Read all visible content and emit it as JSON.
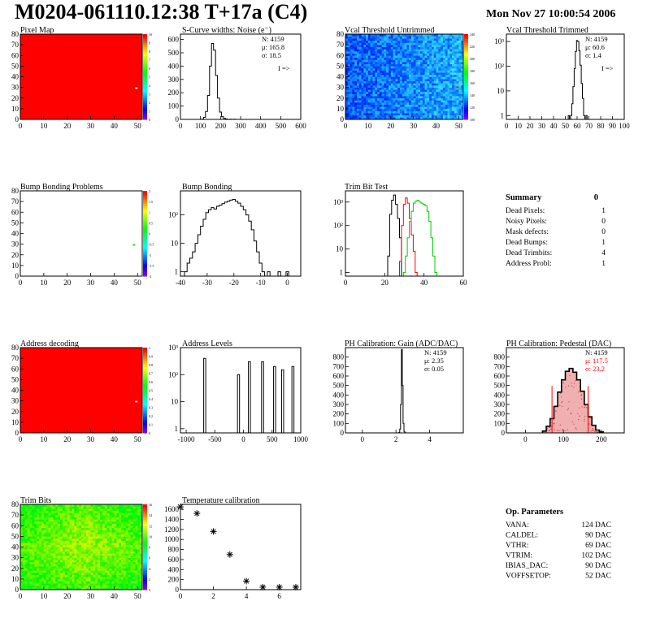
{
  "header": {
    "title": "M0204-061110.12:38 T+17a (C4)",
    "date": "Mon Nov 27 10:00:54 2006"
  },
  "summary": {
    "title": "Summary",
    "value": "0",
    "rows": [
      {
        "label": "Dead Pixels:",
        "value": "1"
      },
      {
        "label": "Noisy Pixels:",
        "value": "0"
      },
      {
        "label": "Mask defects:",
        "value": "0"
      },
      {
        "label": "Dead Bumps:",
        "value": "1"
      },
      {
        "label": "Dead Trimbits:",
        "value": "4"
      },
      {
        "label": "Address Probl:",
        "value": "1"
      }
    ]
  },
  "op_parameters": {
    "title": "Op. Parameters",
    "rows": [
      {
        "label": "VANA:",
        "value": "124 DAC"
      },
      {
        "label": "CALDEL:",
        "value": "90 DAC"
      },
      {
        "label": "VTHR:",
        "value": "69 DAC"
      },
      {
        "label": "VTRIM:",
        "value": "102 DAC"
      },
      {
        "label": "IBIAS_DAC:",
        "value": "90 DAC"
      },
      {
        "label": "VOFFSETOP:",
        "value": "52 DAC"
      }
    ]
  },
  "colors": {
    "red": "#ff0000",
    "green": "#00cc00",
    "hist": "#000000",
    "pedestal_fill": "#cc3333"
  },
  "chart_data": [
    {
      "id": "pixel_map",
      "type": "heatmap",
      "title": "Pixel Map",
      "xlim": [
        0,
        52
      ],
      "ylim": [
        0,
        80
      ],
      "xticks": [
        "0",
        "10",
        "20",
        "30",
        "40",
        "50"
      ],
      "yticks": [
        "0",
        "10",
        "20",
        "30",
        "40",
        "50",
        "60",
        "70",
        "80"
      ],
      "zticks": [
        "0",
        "1",
        "2",
        "3",
        "4",
        "5",
        "6",
        "7",
        "8",
        "9",
        "10"
      ],
      "fill": "uniform-red",
      "defects": [
        [
          49,
          29
        ]
      ]
    },
    {
      "id": "scurve_noise",
      "type": "histogram",
      "title": "S-Curve widths: Noise (e⁻)",
      "xlim": [
        0,
        600
      ],
      "ylim": [
        0,
        640
      ],
      "xticks": [
        "0",
        "100",
        "200",
        "300",
        "400",
        "500",
        "600"
      ],
      "yticks": [
        "0",
        "100",
        "200",
        "300",
        "400",
        "500",
        "600"
      ],
      "stats": [
        "N: 4159",
        "μ: 165.8",
        "σ: 18.5"
      ],
      "note": "I =>",
      "x": [
        110,
        120,
        130,
        140,
        150,
        160,
        170,
        180,
        190,
        200,
        210,
        220,
        230,
        240,
        250,
        260,
        270,
        280
      ],
      "y": [
        2,
        15,
        60,
        180,
        400,
        570,
        520,
        330,
        160,
        55,
        20,
        8,
        3,
        0,
        2,
        0,
        1,
        0
      ]
    },
    {
      "id": "vcal_untrimmed",
      "type": "heatmap",
      "title": "Vcal Threshold Untrimmed",
      "xlim": [
        0,
        52
      ],
      "ylim": [
        0,
        80
      ],
      "xticks": [
        "0",
        "10",
        "20",
        "30",
        "40",
        "50"
      ],
      "yticks": [
        "0",
        "10",
        "20",
        "30",
        "40",
        "50",
        "60",
        "70",
        "80"
      ],
      "zticks": [
        "100",
        "120",
        "140",
        "160",
        "180",
        "200",
        "220",
        "240"
      ],
      "fill": "noisy-blue-cyan"
    },
    {
      "id": "vcal_trimmed",
      "type": "histogram",
      "scale": "log",
      "title": "Vcal Threshold Trimmed",
      "xlim": [
        0,
        100
      ],
      "ylim": [
        0.7,
        2000
      ],
      "xticks": [
        "0",
        "10",
        "20",
        "30",
        "40",
        "50",
        "60",
        "70",
        "80",
        "90",
        "100"
      ],
      "yticks": [
        "1",
        "10",
        "10²",
        "10³"
      ],
      "stats": [
        "N: 4159",
        "μ: 60.6",
        "σ: 1.4"
      ],
      "note": "I =>",
      "x": [
        53,
        54,
        55,
        56,
        57,
        58,
        59,
        60,
        61,
        62,
        63,
        64,
        65,
        66,
        67,
        68
      ],
      "y": [
        1,
        0,
        1,
        3,
        15,
        80,
        400,
        1100,
        1000,
        420,
        110,
        20,
        5,
        1,
        0,
        1
      ]
    },
    {
      "id": "bump_problems",
      "type": "heatmap",
      "title": "Bump Bonding Problems",
      "xlim": [
        0,
        52
      ],
      "ylim": [
        0,
        80
      ],
      "xticks": [
        "0",
        "10",
        "20",
        "30",
        "40",
        "50"
      ],
      "yticks": [
        "0",
        "10",
        "20",
        "30",
        "40",
        "50",
        "60",
        "70",
        "80"
      ],
      "zticks": [
        "-2",
        "-1.5",
        "-1",
        "-0.5",
        "0",
        "0.5",
        "1",
        "1.5",
        "2"
      ],
      "fill": "empty",
      "defects": [
        [
          48,
          29
        ]
      ]
    },
    {
      "id": "bump_bonding",
      "type": "histogram",
      "scale": "log",
      "title": "Bump Bonding",
      "xlim": [
        -40,
        5
      ],
      "ylim": [
        0.7,
        700
      ],
      "xticks": [
        "-40",
        "-30",
        "-20",
        "-10",
        "0"
      ],
      "yticks": [
        "1",
        "10",
        "10²"
      ],
      "x": [
        -38,
        -37,
        -36,
        -35,
        -34,
        -33,
        -32,
        -31,
        -30,
        -29,
        -28,
        -27,
        -26,
        -25,
        -24,
        -23,
        -22,
        -21,
        -20,
        -19,
        -18,
        -17,
        -16,
        -15,
        -14,
        -13,
        -12,
        -11,
        -10,
        -9,
        -8,
        -7,
        -6,
        -5,
        -4,
        -3,
        -2,
        -1,
        0,
        1
      ],
      "y": [
        1,
        2,
        3,
        5,
        10,
        20,
        40,
        70,
        120,
        150,
        180,
        160,
        200,
        220,
        250,
        280,
        300,
        330,
        350,
        300,
        260,
        200,
        150,
        100,
        60,
        30,
        12,
        5,
        2,
        1,
        0,
        1,
        0,
        0,
        0,
        1,
        0,
        0,
        1,
        0
      ]
    },
    {
      "id": "trim_bit_test",
      "type": "histogram",
      "scale": "log",
      "title": "Trim Bit Test",
      "xlim": [
        0,
        60
      ],
      "ylim": [
        0.7,
        3000
      ],
      "xticks": [
        "0",
        "20",
        "40",
        "60"
      ],
      "yticks": [
        "1",
        "10",
        "10²",
        "10³"
      ],
      "series": [
        {
          "color": "black",
          "x": [
            22,
            23,
            24,
            25,
            26,
            27,
            28
          ],
          "y": [
            5,
            300,
            1200,
            2000,
            800,
            200,
            30
          ]
        },
        {
          "color": "red",
          "x": [
            28,
            29,
            30,
            31,
            32,
            33,
            34,
            35,
            36
          ],
          "y": [
            3,
            100,
            800,
            1500,
            900,
            200,
            40,
            8,
            1
          ]
        },
        {
          "color": "green",
          "x": [
            30,
            31,
            32,
            33,
            34,
            35,
            36,
            37,
            38,
            39,
            40,
            41,
            42,
            43,
            44,
            45,
            46
          ],
          "y": [
            1,
            5,
            30,
            150,
            400,
            900,
            1100,
            1200,
            1000,
            900,
            800,
            700,
            400,
            150,
            30,
            5,
            1
          ]
        }
      ]
    },
    {
      "id": "address_decoding",
      "type": "heatmap",
      "title": "Address decoding",
      "xlim": [
        0,
        52
      ],
      "ylim": [
        0,
        80
      ],
      "xticks": [
        "0",
        "10",
        "20",
        "30",
        "40",
        "50"
      ],
      "yticks": [
        "0",
        "10",
        "20",
        "30",
        "40",
        "50",
        "60",
        "70",
        "80"
      ],
      "zticks": [
        "0",
        "0.1",
        "0.2",
        "0.3",
        "0.4",
        "0.5",
        "0.6",
        "0.7",
        "0.8",
        "0.9",
        "1"
      ],
      "fill": "uniform-red",
      "defects": [
        [
          49,
          29
        ]
      ]
    },
    {
      "id": "address_levels",
      "type": "histogram",
      "scale": "log",
      "title": "Address Levels",
      "xlim": [
        -1100,
        1000
      ],
      "ylim": [
        0.7,
        1000
      ],
      "xticks": [
        "-1000",
        "-500",
        "0",
        "500",
        "1000"
      ],
      "yticks": [
        "1",
        "10",
        "10²",
        "10³"
      ],
      "peaks": [
        [
          -680,
          400
        ],
        [
          -90,
          100
        ],
        [
          100,
          300
        ],
        [
          330,
          300
        ],
        [
          540,
          200
        ],
        [
          680,
          150
        ],
        [
          860,
          200
        ]
      ]
    },
    {
      "id": "ph_gain",
      "type": "histogram",
      "title": "PH Calibration: Gain (ADC/DAC)",
      "xlim": [
        -1,
        6
      ],
      "ylim": [
        0,
        900
      ],
      "xticks": [
        "0",
        "2",
        "4"
      ],
      "yticks": [
        "0",
        "100",
        "200",
        "300",
        "400",
        "500",
        "600",
        "700",
        "800"
      ],
      "stats": [
        "N: 4159",
        "μ: 2.35",
        "σ: 0.05"
      ],
      "x": [
        2.2,
        2.25,
        2.3,
        2.35,
        2.4,
        2.45,
        2.5,
        2.55
      ],
      "y": [
        5,
        40,
        300,
        880,
        500,
        100,
        15,
        2
      ]
    },
    {
      "id": "ph_pedestal",
      "type": "histogram",
      "title": "PH Calibration: Pedestal (DAC)",
      "xlim": [
        -50,
        260
      ],
      "ylim": [
        0,
        900
      ],
      "xticks": [
        "0",
        "100",
        "200"
      ],
      "yticks": [
        "0",
        "100",
        "200",
        "300",
        "400",
        "500",
        "600",
        "700",
        "800"
      ],
      "stats": [
        "N: 4159",
        "μ: 117.5",
        "σ: 23.2"
      ],
      "x": [
        50,
        60,
        70,
        80,
        90,
        100,
        110,
        120,
        130,
        140,
        150,
        160,
        170,
        180,
        190,
        200
      ],
      "y": [
        20,
        70,
        150,
        280,
        430,
        560,
        650,
        680,
        640,
        560,
        440,
        300,
        170,
        80,
        30,
        10
      ],
      "cut_lines": [
        70,
        165
      ]
    },
    {
      "id": "trim_bits",
      "type": "heatmap",
      "title": "Trim Bits",
      "xlim": [
        0,
        52
      ],
      "ylim": [
        0,
        80
      ],
      "xticks": [
        "0",
        "10",
        "20",
        "30",
        "40",
        "50"
      ],
      "yticks": [
        "0",
        "10",
        "20",
        "30",
        "40",
        "50",
        "60",
        "70",
        "80"
      ],
      "zticks": [
        "0",
        "2",
        "4",
        "6",
        "8",
        "10",
        "12",
        "14",
        "16"
      ],
      "fill": "noisy-green-yellow"
    },
    {
      "id": "temperature",
      "type": "scatter",
      "title": "Temperature calibration",
      "xlim": [
        0,
        7.3
      ],
      "ylim": [
        0,
        1700
      ],
      "xticks": [
        "0",
        "2",
        "4",
        "6"
      ],
      "yticks": [
        "0",
        "200",
        "400",
        "600",
        "800",
        "1000",
        "1200",
        "1400",
        "1600"
      ],
      "x": [
        0,
        1,
        2,
        3,
        4,
        5,
        6,
        7
      ],
      "y": [
        1650,
        1520,
        1160,
        700,
        170,
        50,
        50,
        50
      ]
    }
  ]
}
